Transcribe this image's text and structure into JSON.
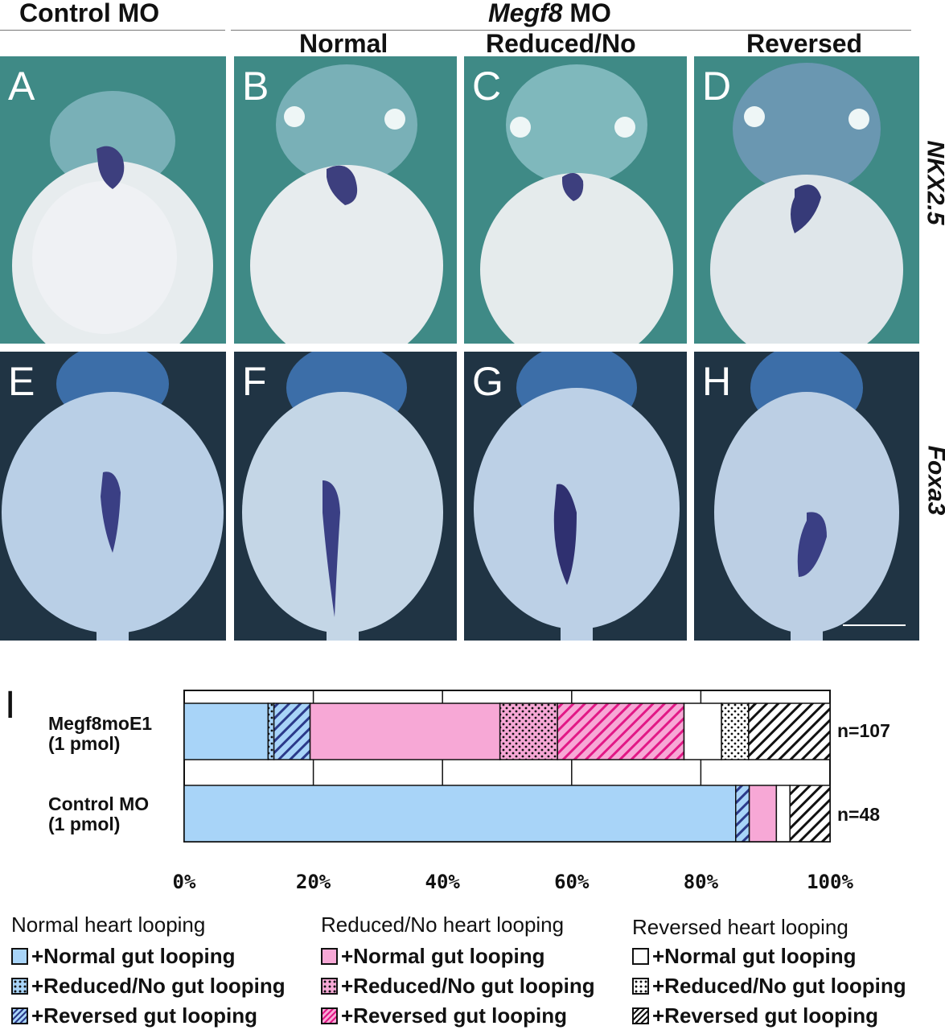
{
  "headers": {
    "control": "Control MO",
    "megf8": "Megf8",
    "megf8_suffix": " MO",
    "normal": "Normal",
    "reduced": "Reduced/No",
    "reversed": "Reversed"
  },
  "rows": [
    {
      "gene": "NKX2.5",
      "panels": [
        "A",
        "B",
        "C",
        "D"
      ]
    },
    {
      "gene": "Foxa3",
      "panels": [
        "E",
        "F",
        "G",
        "H"
      ]
    }
  ],
  "chart_panel_label": "I",
  "chart_data": {
    "type": "bar",
    "orientation": "horizontal",
    "stacked": true,
    "categories": [
      "Megf8moE1\n(1 pmol)",
      "Control MO\n(1 pmol)"
    ],
    "category_lines": [
      [
        "Megf8moE1",
        "(1 pmol)"
      ],
      [
        "Control MO",
        "(1 pmol)"
      ]
    ],
    "n_labels": [
      "n=107",
      "n=48"
    ],
    "xlim": [
      0,
      100
    ],
    "xticks": [
      "0%",
      "20%",
      "40%",
      "60%",
      "80%",
      "100%"
    ],
    "grid": true,
    "series": [
      {
        "heart": "Normal",
        "gut": "Normal",
        "color": "#a8d4f8",
        "pattern": "solid",
        "values": [
          13,
          85.4
        ]
      },
      {
        "heart": "Normal",
        "gut": "Reduced/No",
        "color": "#a8d4f8",
        "pattern": "dots",
        "values": [
          0.9,
          0
        ]
      },
      {
        "heart": "Normal",
        "gut": "Reversed",
        "color": "#a8d4f8",
        "pattern": "stripes",
        "values": [
          5.6,
          2.1
        ]
      },
      {
        "heart": "Reduced/No",
        "gut": "Normal",
        "color": "#f7a8d6",
        "pattern": "solid",
        "values": [
          29.4,
          4.2
        ]
      },
      {
        "heart": "Reduced/No",
        "gut": "Reduced/No",
        "color": "#f7a8d6",
        "pattern": "dots",
        "values": [
          8.9,
          0
        ]
      },
      {
        "heart": "Reduced/No",
        "gut": "Reversed",
        "color": "#f7a8d6",
        "pattern": "stripes",
        "values": [
          19.6,
          0
        ]
      },
      {
        "heart": "Reversed",
        "gut": "Normal",
        "color": "#ffffff",
        "pattern": "solid",
        "values": [
          5.8,
          2.1
        ]
      },
      {
        "heart": "Reversed",
        "gut": "Reduced/No",
        "color": "#ffffff",
        "pattern": "dots",
        "values": [
          4.2,
          0
        ]
      },
      {
        "heart": "Reversed",
        "gut": "Reversed",
        "color": "#ffffff",
        "pattern": "stripes",
        "values": [
          12.6,
          6.2
        ]
      }
    ]
  },
  "legend": {
    "groups": [
      {
        "title": "Normal heart looping",
        "color": "#a8d4f8"
      },
      {
        "title": "Reduced/No heart looping",
        "color": "#f7a8d6"
      },
      {
        "title": "Reversed heart looping",
        "color": "#ffffff"
      }
    ],
    "items": [
      "+Normal gut looping",
      "+Reduced/No gut looping",
      "+Reversed gut looping"
    ]
  }
}
